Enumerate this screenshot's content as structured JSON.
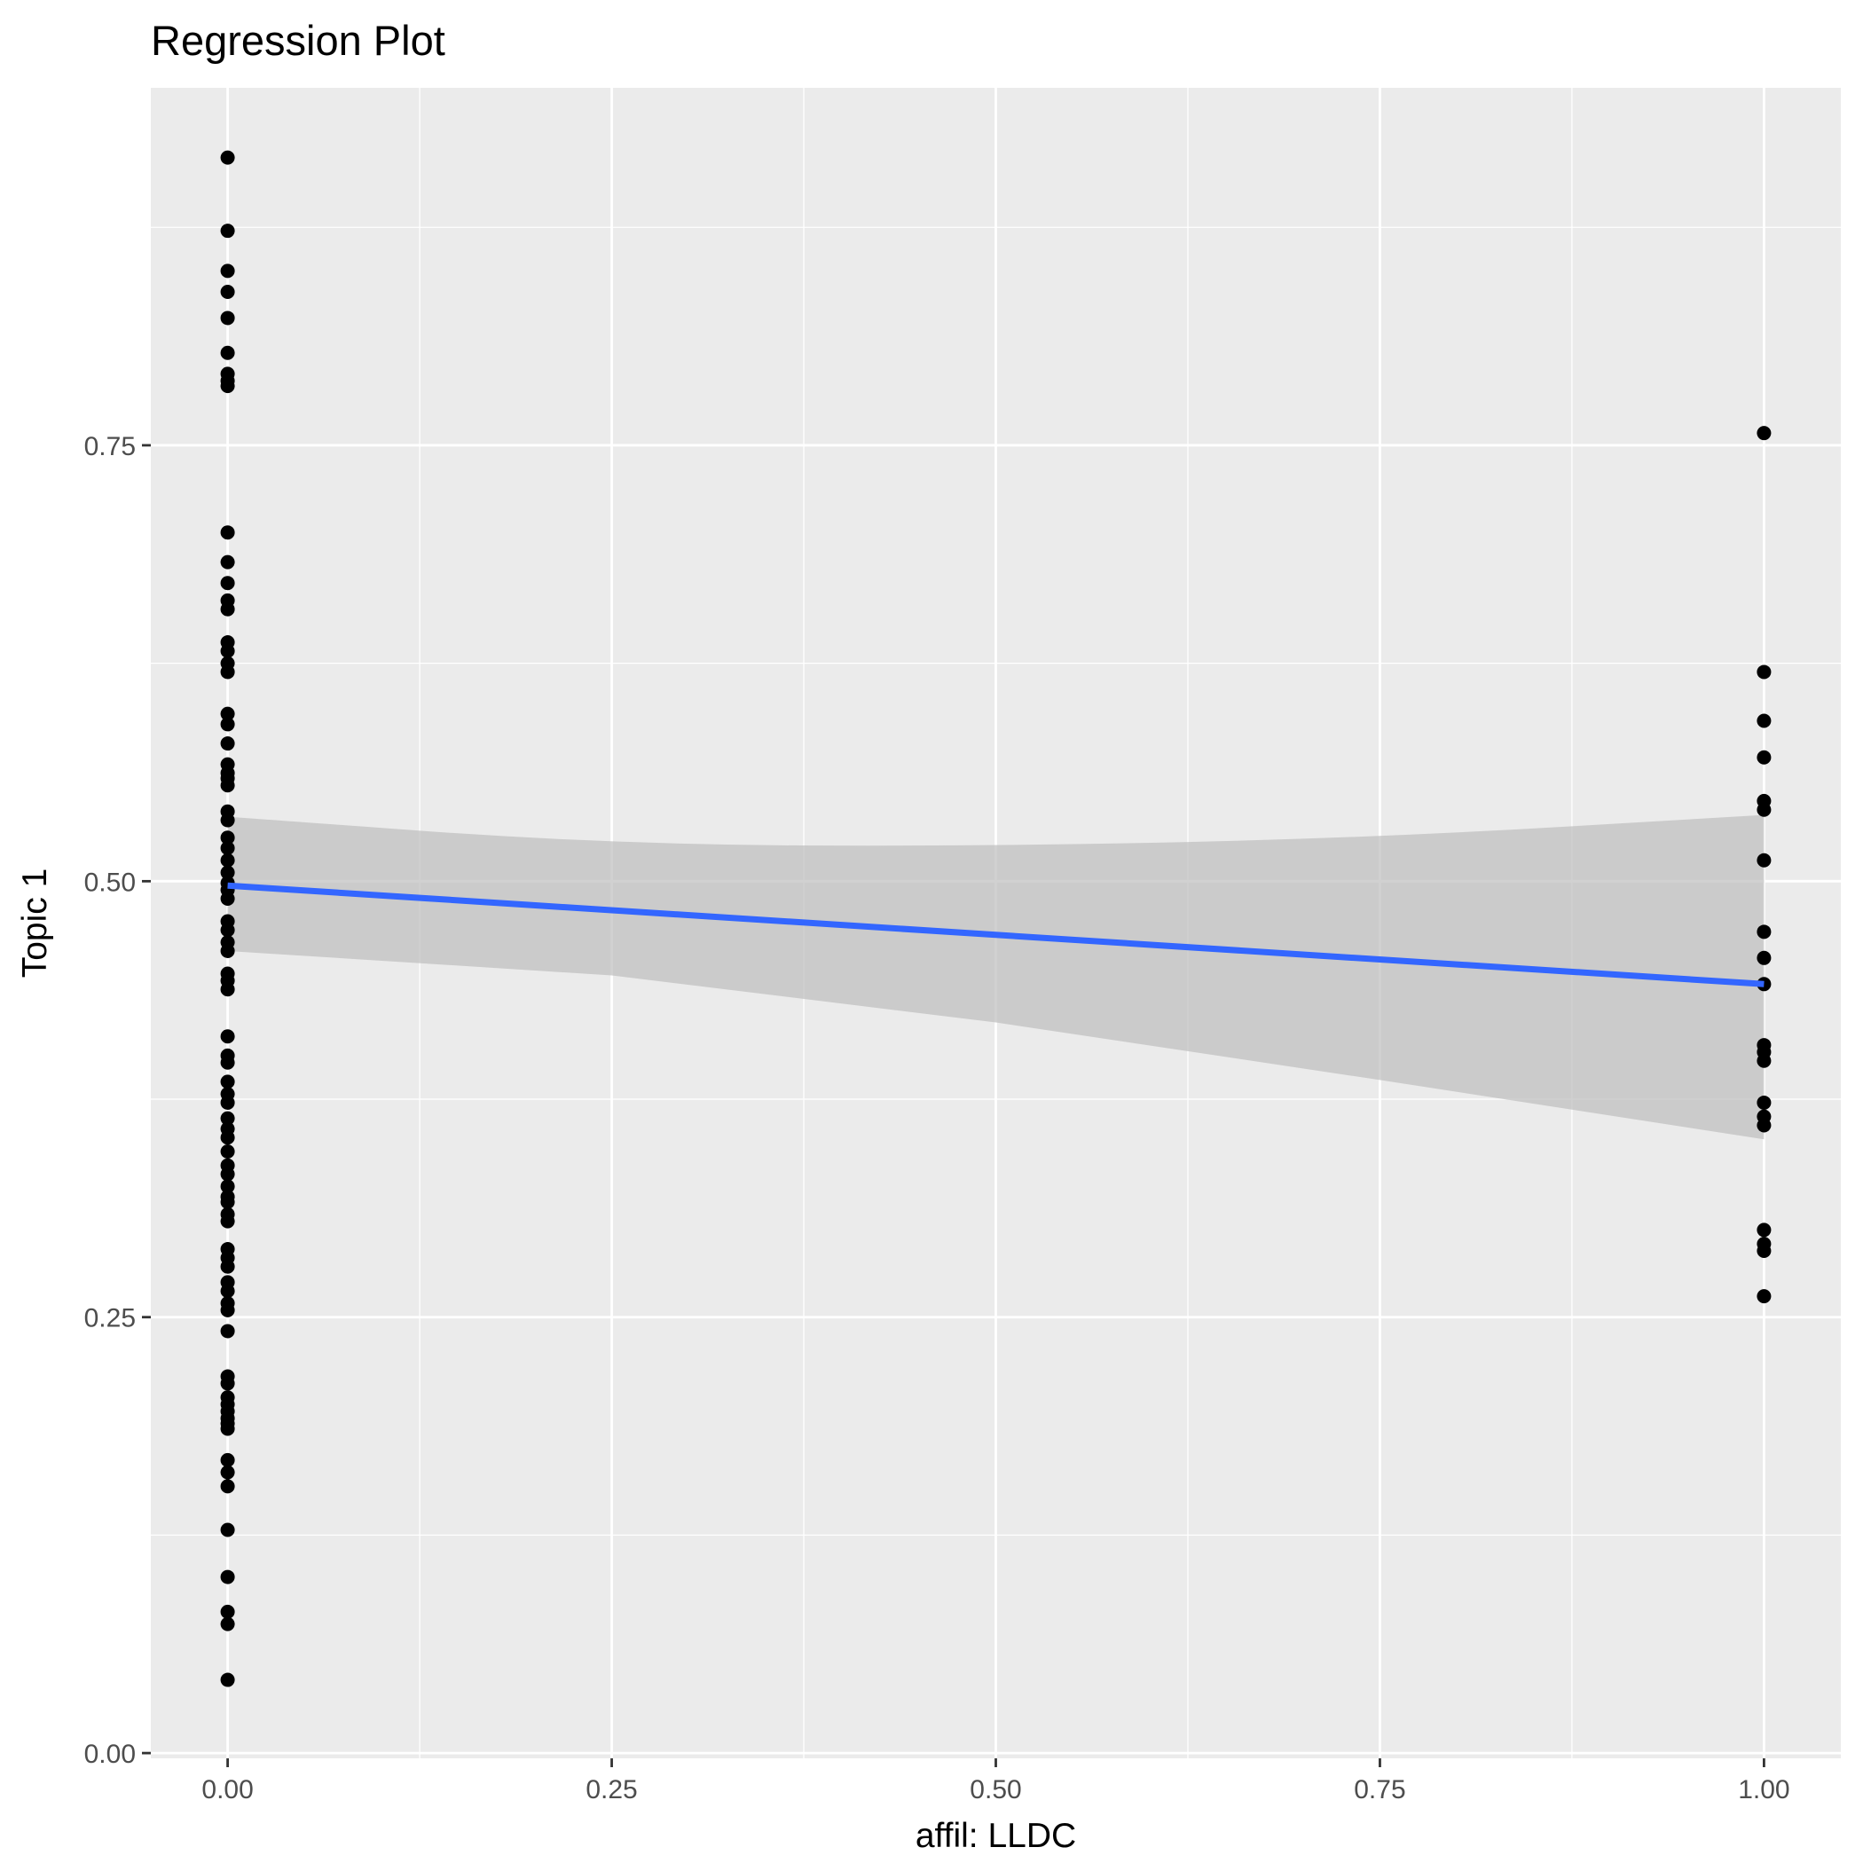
{
  "chart_data": {
    "type": "scatter",
    "title": "Regression Plot",
    "xlabel": "affil: LLDC",
    "ylabel": "Topic 1",
    "xlim": [
      -0.05,
      1.05
    ],
    "ylim": [
      -0.003,
      0.955
    ],
    "x_ticks": [
      0.0,
      0.25,
      0.5,
      0.75,
      1.0
    ],
    "x_tick_labels": [
      "0.00",
      "0.25",
      "0.50",
      "0.75",
      "1.00"
    ],
    "y_ticks": [
      0.0,
      0.25,
      0.5,
      0.75
    ],
    "y_tick_labels": [
      "0.00",
      "0.25",
      "0.50",
      "0.75"
    ],
    "grid": true,
    "point_color": "#000000",
    "line_color": "#3366ff",
    "band_color": "#bdbdbd",
    "panel_color": "#ebebeb",
    "points": {
      "x0": [
        0.915,
        0.873,
        0.85,
        0.838,
        0.823,
        0.803,
        0.791,
        0.787,
        0.784,
        0.7,
        0.683,
        0.671,
        0.661,
        0.656,
        0.637,
        0.632,
        0.625,
        0.62,
        0.596,
        0.59,
        0.579,
        0.567,
        0.562,
        0.559,
        0.555,
        0.54,
        0.535,
        0.525,
        0.519,
        0.512,
        0.505,
        0.499,
        0.495,
        0.49,
        0.477,
        0.472,
        0.465,
        0.46,
        0.447,
        0.443,
        0.438,
        0.411,
        0.4,
        0.396,
        0.385,
        0.378,
        0.373,
        0.364,
        0.358,
        0.353,
        0.345,
        0.337,
        0.332,
        0.325,
        0.319,
        0.316,
        0.309,
        0.305,
        0.289,
        0.284,
        0.279,
        0.27,
        0.265,
        0.258,
        0.254,
        0.242,
        0.216,
        0.212,
        0.204,
        0.2,
        0.196,
        0.192,
        0.189,
        0.186,
        0.168,
        0.161,
        0.153,
        0.128,
        0.101,
        0.081,
        0.074,
        0.042
      ],
      "x1": [
        0.757,
        0.62,
        0.592,
        0.571,
        0.546,
        0.541,
        0.512,
        0.471,
        0.456,
        0.441,
        0.406,
        0.402,
        0.397,
        0.373,
        0.365,
        0.36,
        0.3,
        0.292,
        0.288,
        0.262
      ]
    },
    "fit": {
      "intercept": 0.4975,
      "slope": -0.0565,
      "band_lower": [
        [
          0.0,
          0.46
        ],
        [
          0.25,
          0.446
        ],
        [
          0.5,
          0.419
        ],
        [
          0.75,
          0.386
        ],
        [
          1.0,
          0.352
        ]
      ],
      "band_upper": [
        [
          0.0,
          0.537
        ],
        [
          0.25,
          0.521
        ],
        [
          0.5,
          0.52
        ],
        [
          0.75,
          0.525
        ],
        [
          1.0,
          0.538
        ]
      ]
    }
  }
}
